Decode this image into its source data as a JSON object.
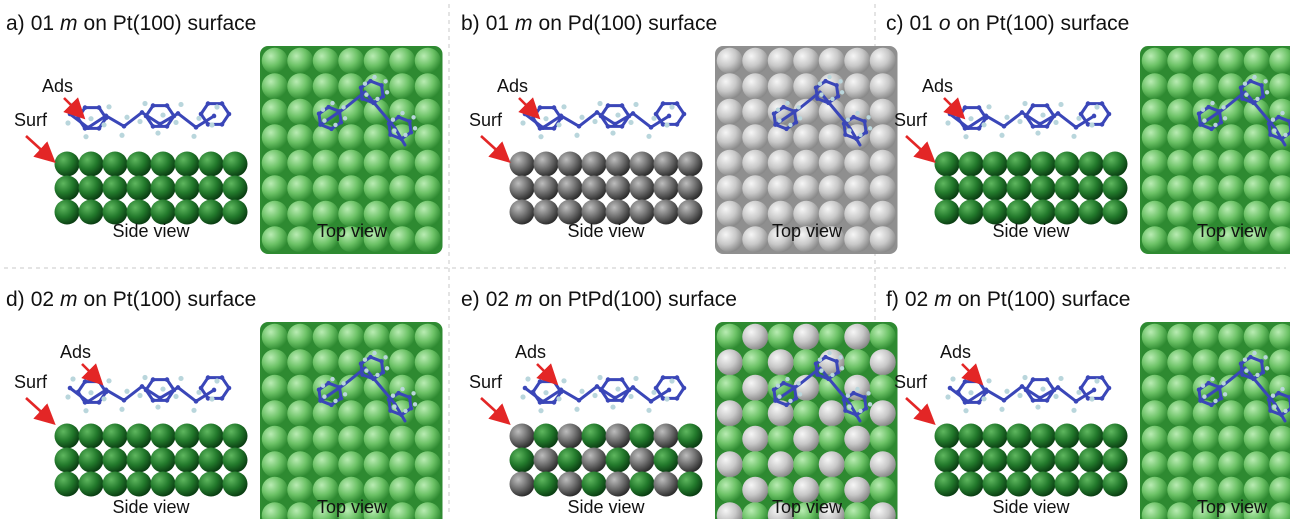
{
  "panels": [
    {
      "id": "a",
      "letter": "a)",
      "mol": "01",
      "iso": "m",
      "surface": "Pt(100) surface",
      "slab": "pt",
      "ads": "Ads",
      "surf": "Surf",
      "side": "Side view",
      "top": "Top view"
    },
    {
      "id": "b",
      "letter": "b)",
      "mol": "01",
      "iso": "m",
      "surface": "Pd(100) surface",
      "slab": "pd",
      "ads": "Ads",
      "surf": "Surf",
      "side": "Side view",
      "top": "Top view"
    },
    {
      "id": "c",
      "letter": "c)",
      "mol": "01",
      "iso": "o",
      "surface": "Pt(100) surface",
      "slab": "pt",
      "ads": "Ads",
      "surf": "Surf",
      "side": "Side view",
      "top": "Top view"
    },
    {
      "id": "d",
      "letter": "d)",
      "mol": "02",
      "iso": "m",
      "surface": "Pt(100) surface",
      "slab": "pt",
      "ads": "Ads",
      "surf": "Surf",
      "side": "Side view",
      "top": "Top view"
    },
    {
      "id": "e",
      "letter": "e)",
      "mol": "02",
      "iso": "m",
      "surface": "PtPd(100) surface",
      "slab": "ptpd",
      "ads": "Ads",
      "surf": "Surf",
      "side": "Side view",
      "top": "Top view"
    },
    {
      "id": "f",
      "letter": "f)",
      "mol": "02",
      "iso": "m",
      "surface": "Pt(100) surface",
      "slab": "pt",
      "ads": "Ads",
      "surf": "Surf",
      "side": "Side view",
      "top": "Top view"
    }
  ],
  "colors": {
    "pt_top_light": "#8fd48a",
    "pt_top_dark": "#3c9a3c",
    "pt_side_light": "#3e9a43",
    "pt_side_dark": "#0f4f1a",
    "pd_top_light": "#e4e4e4",
    "pd_top_dark": "#9a9a9a",
    "pd_side_light": "#a9a9a9",
    "pd_side_dark": "#333333",
    "molecule": "#3a46b8",
    "hydrogen": "#b9d6dc",
    "arrow": "#e32626"
  }
}
